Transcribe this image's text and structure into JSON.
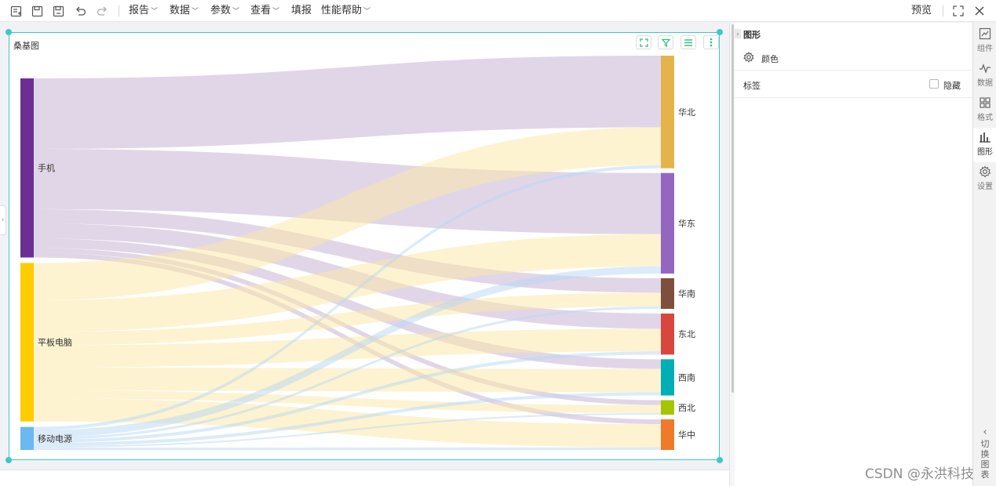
{
  "toolbar": {
    "menus": [
      "报告",
      "数据",
      "参数",
      "查看",
      "填报",
      "性能帮助"
    ],
    "preview_label": "预览",
    "icons": [
      "new-file-icon",
      "save-icon",
      "save-as-icon",
      "undo-icon",
      "redo-icon",
      "fullscreen-icon",
      "close-icon"
    ]
  },
  "card": {
    "title": "桑基图",
    "buttons": [
      "expand-icon",
      "filter-icon",
      "list-icon",
      "more-icon"
    ]
  },
  "panel": {
    "title": "图形",
    "color_label": "颜色",
    "label_label": "标签",
    "hide_label": "隐藏",
    "hide_checked": false
  },
  "right_nav": {
    "items": [
      "组件",
      "数据",
      "格式",
      "图形",
      "设置"
    ],
    "active": "图形",
    "switch_label": [
      "切",
      "换",
      "图",
      "表"
    ]
  },
  "watermark": "CSDN @永洪科技",
  "colors": {
    "accent": "#3ec8c8",
    "手机": "#6b2f93",
    "平板电脑": "#ffcc00",
    "移动电源": "#6cb8f1",
    "华北": "#e4b44a",
    "华东": "#9466c0",
    "华南": "#7d4f3c",
    "东北": "#d7473e",
    "西南": "#00aeb5",
    "西北": "#a6c400",
    "华中": "#ef7b2a"
  },
  "chart_data": {
    "type": "sankey",
    "title": "桑基图",
    "sources": [
      "手机",
      "平板电脑",
      "移动电源"
    ],
    "targets": [
      "华北",
      "华东",
      "华南",
      "东北",
      "西南",
      "西北",
      "华中"
    ],
    "links": [
      {
        "source": "手机",
        "target": "华北",
        "value": 89
      },
      {
        "source": "手机",
        "target": "华东",
        "value": 76
      },
      {
        "source": "手机",
        "target": "华南",
        "value": 18
      },
      {
        "source": "手机",
        "target": "东北",
        "value": 19
      },
      {
        "source": "手机",
        "target": "西南",
        "value": 12
      },
      {
        "source": "手机",
        "target": "西北",
        "value": 6
      },
      {
        "source": "手机",
        "target": "华中",
        "value": 6
      },
      {
        "source": "平板电脑",
        "target": "华北",
        "value": 47
      },
      {
        "source": "平板电脑",
        "target": "华东",
        "value": 40
      },
      {
        "source": "平板电脑",
        "target": "华南",
        "value": 17
      },
      {
        "source": "平板电脑",
        "target": "东北",
        "value": 28
      },
      {
        "source": "平板电脑",
        "target": "西南",
        "value": 29
      },
      {
        "source": "平板电脑",
        "target": "西北",
        "value": 10
      },
      {
        "source": "平板电脑",
        "target": "华中",
        "value": 29
      },
      {
        "source": "移动电源",
        "target": "华北",
        "value": 4
      },
      {
        "source": "移动电源",
        "target": "华东",
        "value": 9
      },
      {
        "source": "移动电源",
        "target": "华南",
        "value": 3
      },
      {
        "source": "移动电源",
        "target": "东北",
        "value": 4
      },
      {
        "source": "移动电源",
        "target": "西南",
        "value": 4
      },
      {
        "source": "移动电源",
        "target": "西北",
        "value": 2
      },
      {
        "source": "移动电源",
        "target": "华中",
        "value": 3
      }
    ]
  }
}
